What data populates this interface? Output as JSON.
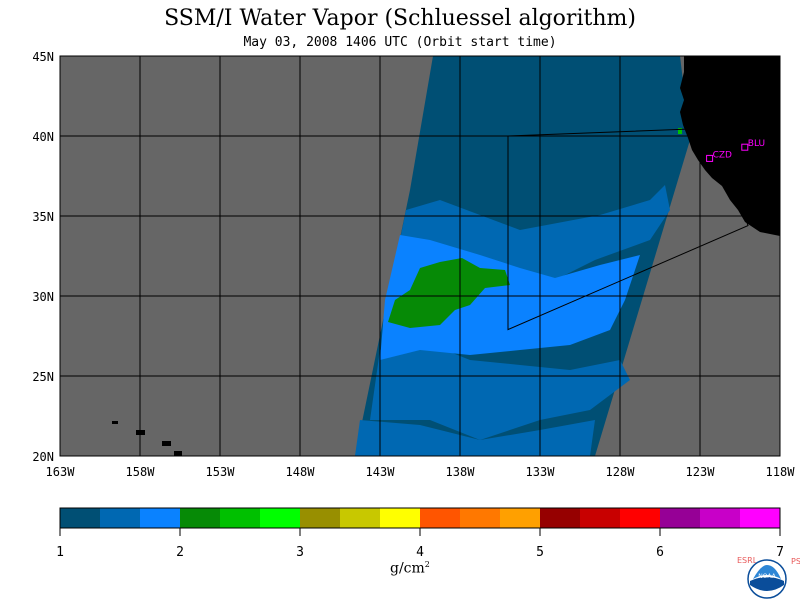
{
  "title": "SSM/I Water Vapor (Schluessel algorithm)",
  "subtitle": "May 03, 2008  1406 UTC  (Orbit start time)",
  "map": {
    "lon_labels": [
      "163W",
      "158W",
      "153W",
      "148W",
      "143W",
      "138W",
      "133W",
      "128W",
      "123W",
      "118W"
    ],
    "lat_labels": [
      "45N",
      "40N",
      "35N",
      "30N",
      "25N",
      "20N"
    ],
    "lon_values": [
      -163,
      -158,
      -153,
      -148,
      -143,
      -138,
      -133,
      -128,
      -123,
      -118
    ],
    "lat_values": [
      45,
      40,
      35,
      30,
      25,
      20
    ],
    "land_color": "#000000",
    "no_data_color": "#666666",
    "stations": [
      {
        "code": "CZD",
        "lon": -122.4,
        "lat": 38.6
      },
      {
        "code": "BLU",
        "lon": -120.2,
        "lat": 39.3
      }
    ],
    "outline_polygon": [
      [
        -135,
        40
      ],
      [
        -122,
        40.5
      ],
      [
        -120,
        34.4
      ],
      [
        -135,
        27.9
      ]
    ]
  },
  "colorbar": {
    "ticks": [
      "1",
      "2",
      "3",
      "4",
      "5",
      "6",
      "7"
    ],
    "colors": [
      "#004f74",
      "#0068b2",
      "#0a82ff",
      "#068a06",
      "#00c000",
      "#00ff00",
      "#988f00",
      "#c8c800",
      "#ffff00",
      "#ff5500",
      "#ff7800",
      "#ffa000",
      "#960000",
      "#c80000",
      "#ff0000",
      "#960096",
      "#c800c8",
      "#ff00ff"
    ],
    "units": "g/cm",
    "units_exp": "2"
  },
  "logo": {
    "left_text": "ESRL",
    "right_text": "PSD",
    "center_text": "NOAA",
    "primary_color": "#0a4d9a"
  }
}
